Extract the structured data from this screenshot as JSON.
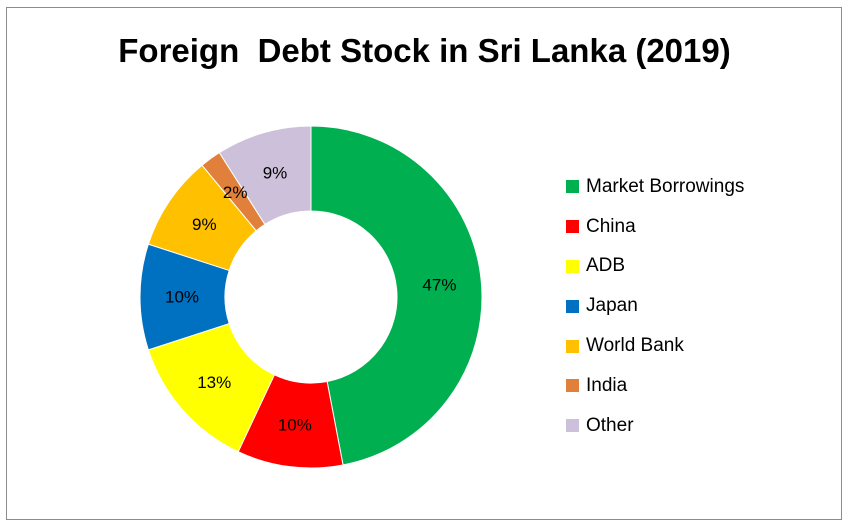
{
  "chart_data": {
    "type": "pie",
    "title": "Foreign  Debt Stock in Sri Lanka (2019)",
    "categories": [
      "Market Borrowings",
      "China",
      "ADB",
      "Japan",
      "World Bank",
      "India",
      "Other"
    ],
    "values": [
      47,
      10,
      13,
      10,
      9,
      2,
      9
    ],
    "labels": [
      "47%",
      "10%",
      "13%",
      "10%",
      "9%",
      "2%",
      "9%"
    ],
    "colors": [
      "#00b050",
      "#ff0000",
      "#ffff00",
      "#0070c0",
      "#ffc000",
      "#e0803a",
      "#ccc0da"
    ],
    "legend_position": "right",
    "donut": true
  }
}
